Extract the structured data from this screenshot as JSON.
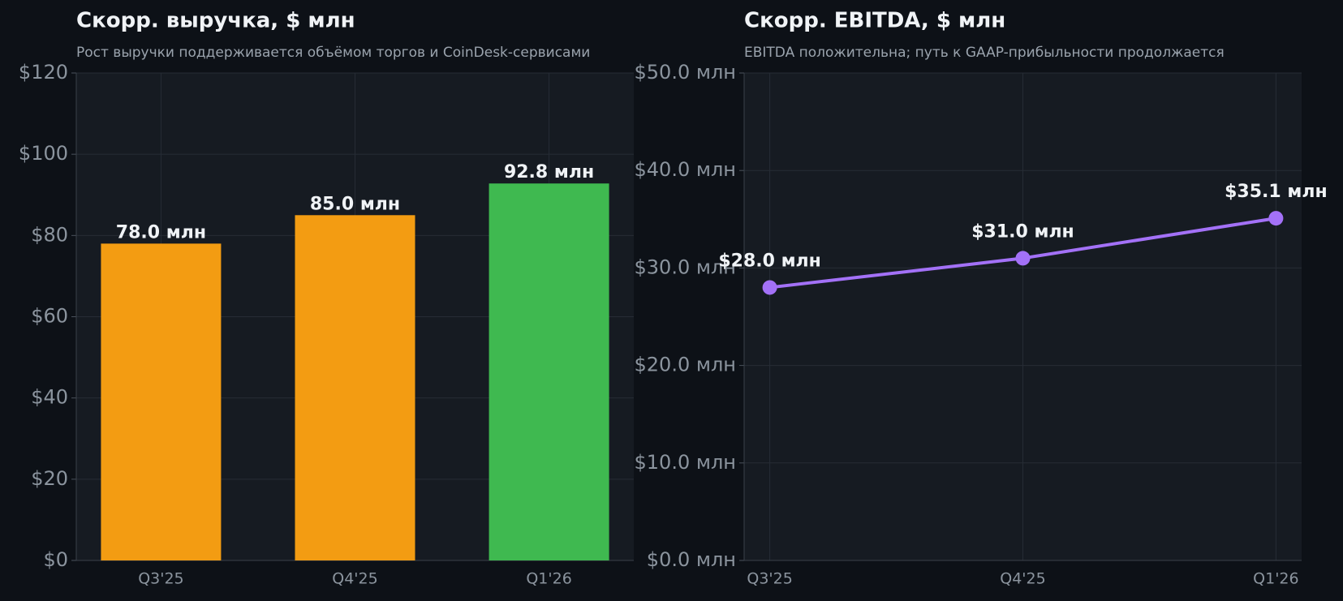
{
  "chart_data": [
    {
      "type": "bar",
      "title": "Скорр. выручка, $ млн",
      "subtitle": "Рост выручки поддерживается объёмом торгов и CoinDesk-сервисами",
      "categories": [
        "Q3'25",
        "Q4'25",
        "Q1'26"
      ],
      "values": [
        78.0,
        85.0,
        92.8
      ],
      "value_labels": [
        "78.0 млн",
        "85.0 млн",
        "92.8 млн"
      ],
      "colors": [
        "#f39c12",
        "#f39c12",
        "#3fb950"
      ],
      "ylim": [
        0,
        120
      ],
      "yticks": [
        {
          "value": 0,
          "label": "$0"
        },
        {
          "value": 20,
          "label": "$20"
        },
        {
          "value": 40,
          "label": "$40"
        },
        {
          "value": 60,
          "label": "$60"
        },
        {
          "value": 80,
          "label": "$80"
        },
        {
          "value": 100,
          "label": "$100"
        },
        {
          "value": 120,
          "label": "$120"
        }
      ],
      "grid": true
    },
    {
      "type": "line",
      "title": "Скорр. EBITDA, $ млн",
      "subtitle": "EBITDA положительна; путь к GAAP-прибыльности продолжается",
      "categories": [
        "Q3'25",
        "Q4'25",
        "Q1'26"
      ],
      "values": [
        28.0,
        31.0,
        35.1
      ],
      "value_labels": [
        "$28.0 млн",
        "$31.0 млн",
        "$35.1 млн"
      ],
      "color": "#a371f7",
      "ylim": [
        0,
        50
      ],
      "yticks": [
        {
          "value": 0,
          "label": "$0.0 млн"
        },
        {
          "value": 10,
          "label": "$10.0 млн"
        },
        {
          "value": 20,
          "label": "$20.0 млн"
        },
        {
          "value": 30,
          "label": "$30.0 млн"
        },
        {
          "value": 40,
          "label": "$40.0 млн"
        },
        {
          "value": 50,
          "label": "$50.0 млн"
        }
      ],
      "grid": true
    }
  ]
}
